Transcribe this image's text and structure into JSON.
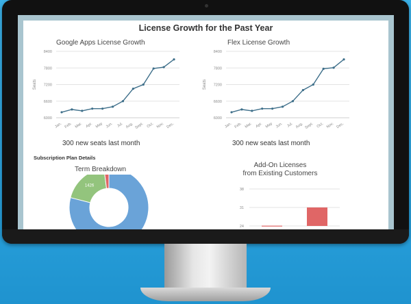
{
  "dashboard": {
    "title": "License Growth for the Past Year",
    "section_title": "Subscription Plan Details"
  },
  "colors": {
    "line": "#3e6f8a",
    "grid": "#e3e3e3",
    "donut_blue": "#6aa3d8",
    "donut_green": "#93c47d",
    "donut_red": "#e06666",
    "bar_red": "#e06666"
  },
  "chart_data": [
    {
      "type": "line",
      "title": "Google Apps License Growth",
      "ylabel": "Seats",
      "xlabel": "",
      "caption": "300 new seats last month",
      "categories": [
        "Jan.",
        "Feb.",
        "Mar.",
        "Apr.",
        "May",
        "Jun.",
        "Jul.",
        "Aug.",
        "Sept.",
        "Oct.",
        "Nov.",
        "Dec."
      ],
      "ylim": [
        6000,
        8400
      ],
      "yticks": [
        "6000",
        "6600",
        "7200",
        "7800",
        "8400"
      ],
      "series": [
        {
          "values": [
            6200,
            6300,
            6250,
            6330,
            6330,
            6400,
            6600,
            7050,
            7200,
            7780,
            7830,
            8110
          ]
        }
      ],
      "grid": true
    },
    {
      "type": "line",
      "title": "Flex License Growth",
      "ylabel": "Seats",
      "xlabel": "",
      "caption": "300 new seats last month",
      "categories": [
        "Jan.",
        "Feb.",
        "Mar.",
        "Apr.",
        "May",
        "Jun.",
        "Jul.",
        "Aug.",
        "Sept.",
        "Oct.",
        "Nov.",
        "Dec."
      ],
      "ylim": [
        6000,
        8400
      ],
      "yticks": [
        "6000",
        "6600",
        "7200",
        "7800",
        "8400"
      ],
      "series": [
        {
          "values": [
            6200,
            6300,
            6250,
            6330,
            6330,
            6400,
            6600,
            7000,
            7200,
            7770,
            7810,
            8110
          ]
        }
      ],
      "grid": true
    },
    {
      "type": "pie",
      "title": "Term Breakdown",
      "labels": [
        "",
        "",
        ""
      ],
      "values": [
        79,
        19,
        2
      ],
      "slice_labels": [
        "",
        "1426",
        ""
      ]
    },
    {
      "type": "bar",
      "title": "Add-On Licenses",
      "subtitle": "from Existing Customers",
      "ylim": [
        24,
        38
      ],
      "yticks": [
        "24",
        "31",
        "38"
      ],
      "values": [
        24.1,
        31
      ],
      "grid": true
    }
  ]
}
